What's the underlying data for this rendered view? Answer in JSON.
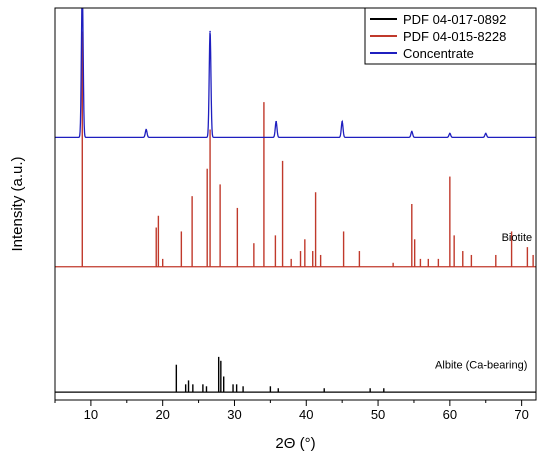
{
  "chart_data": {
    "type": "line",
    "title": "",
    "xlabel": "2Θ (°)",
    "ylabel": "Intensity (a.u.)",
    "xlim": [
      5,
      72
    ],
    "xticks": [
      10,
      20,
      30,
      40,
      50,
      60,
      70
    ],
    "ylim": [
      0,
      100
    ],
    "grid": false,
    "legend": "top-right",
    "series": [
      {
        "name": "PDF 04-017-0892",
        "color": "#000000",
        "style": "sticks",
        "baseline": 2,
        "peaks": [
          [
            21.9,
            7
          ],
          [
            23.2,
            2
          ],
          [
            23.6,
            3
          ],
          [
            24.2,
            2
          ],
          [
            25.6,
            2
          ],
          [
            26.1,
            1.5
          ],
          [
            27.8,
            9
          ],
          [
            28.1,
            8
          ],
          [
            28.5,
            4
          ],
          [
            29.8,
            2
          ],
          [
            30.3,
            2
          ],
          [
            31.2,
            1.5
          ],
          [
            35.0,
            1.5
          ],
          [
            36.1,
            1
          ],
          [
            42.5,
            1
          ],
          [
            48.9,
            1
          ],
          [
            50.8,
            1
          ]
        ]
      },
      {
        "name": "PDF 04-015-8228",
        "color": "#c0392b",
        "style": "sticks",
        "baseline": 34,
        "peaks": [
          [
            8.8,
            60
          ],
          [
            19.1,
            10
          ],
          [
            19.4,
            13
          ],
          [
            20.0,
            2
          ],
          [
            22.6,
            9
          ],
          [
            24.1,
            18
          ],
          [
            26.2,
            25
          ],
          [
            26.6,
            35
          ],
          [
            28.0,
            21
          ],
          [
            30.4,
            15
          ],
          [
            32.7,
            6
          ],
          [
            34.1,
            42
          ],
          [
            35.7,
            8
          ],
          [
            36.7,
            27
          ],
          [
            37.9,
            2
          ],
          [
            39.2,
            4
          ],
          [
            39.8,
            7
          ],
          [
            40.9,
            4
          ],
          [
            41.3,
            19
          ],
          [
            42.0,
            3
          ],
          [
            45.2,
            9
          ],
          [
            47.4,
            4
          ],
          [
            52.1,
            1
          ],
          [
            54.7,
            16
          ],
          [
            55.1,
            7
          ],
          [
            55.9,
            2
          ],
          [
            57.0,
            2
          ],
          [
            58.4,
            2
          ],
          [
            60.0,
            23
          ],
          [
            60.6,
            8
          ],
          [
            61.8,
            4
          ],
          [
            63.0,
            3
          ],
          [
            66.4,
            3
          ],
          [
            68.6,
            9
          ],
          [
            70.8,
            5
          ],
          [
            71.6,
            3
          ]
        ]
      },
      {
        "name": "Concentrate",
        "color": "#1f1fbf",
        "style": "pattern",
        "baseline": 67,
        "peaks": [
          [
            8.8,
            38
          ],
          [
            17.7,
            2
          ],
          [
            26.6,
            27
          ],
          [
            35.8,
            4
          ],
          [
            45.0,
            4
          ],
          [
            54.7,
            1.5
          ],
          [
            60.0,
            1
          ],
          [
            65.0,
            1
          ]
        ]
      }
    ],
    "annotations": [
      {
        "text": "Biotite",
        "x": 68.6,
        "y": 40
      },
      {
        "text": "Albite (Ca-bearing)",
        "x": 58.3,
        "y": 8
      }
    ]
  }
}
